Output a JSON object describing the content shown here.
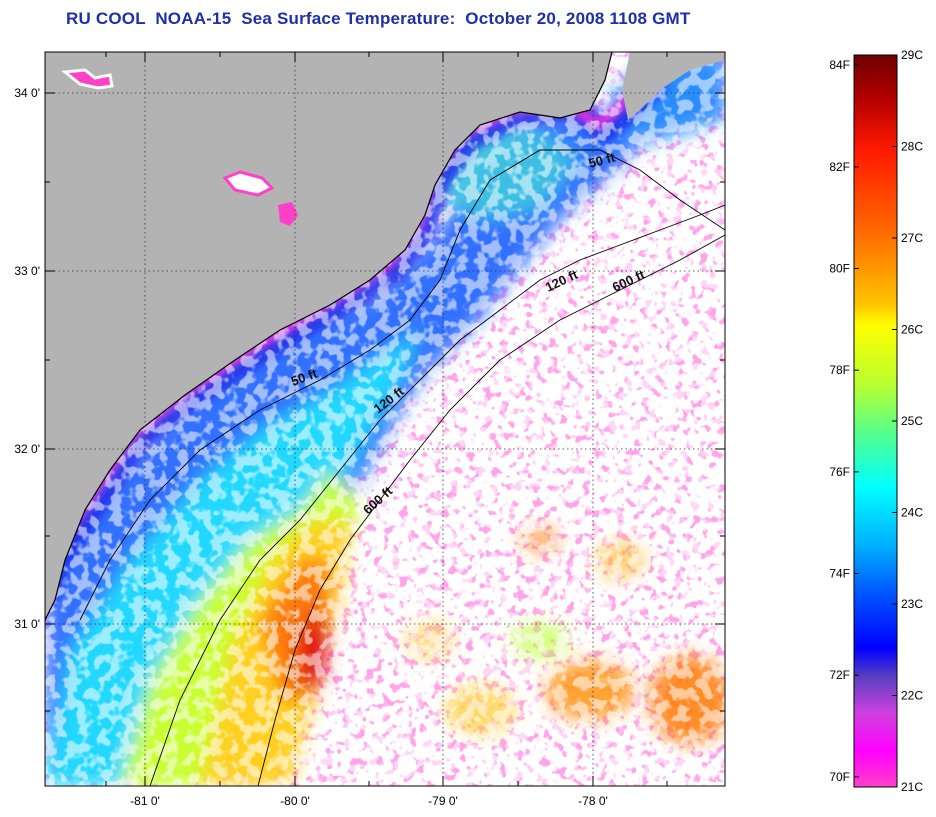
{
  "title": "RU COOL  NOAA-15  Sea Surface Temperature:  October 20, 2008 1108 GMT",
  "map": {
    "lat_labels": [
      {
        "lat": 34,
        "text": "34 0'"
      },
      {
        "lat": 33,
        "text": "33 0'"
      },
      {
        "lat": 32,
        "text": "32 0'"
      },
      {
        "lat": 31,
        "text": "31 0'"
      }
    ],
    "lon_labels": [
      {
        "lon": -81,
        "text": "-81 0'"
      },
      {
        "lon": -80,
        "text": "-80 0'"
      },
      {
        "lon": -79,
        "text": "-79 0'"
      },
      {
        "lon": -78,
        "text": "-78 0'"
      }
    ],
    "contour_labels": [
      "50 ft",
      "120 ft",
      "600 ft",
      "50 ft",
      "120 ft",
      "600 ft"
    ],
    "colors": {
      "land": "#b3b3b3",
      "cloud": "#ffffff",
      "coast": "#000000",
      "grid": "#000000"
    }
  },
  "colorbar": {
    "celsius": [
      "29C",
      "28C",
      "27C",
      "26C",
      "25C",
      "24C",
      "23C",
      "22C",
      "21C"
    ],
    "fahrenheit": [
      "84F",
      "82F",
      "80F",
      "78F",
      "76F",
      "74F",
      "72F",
      "70F"
    ],
    "stops": [
      "#6e0000",
      "#c80000",
      "#ff2a00",
      "#ff7a00",
      "#ffc800",
      "#ffff00",
      "#9cff40",
      "#30ffb0",
      "#00ffff",
      "#0090ff",
      "#0028ff",
      "#0000c0",
      "#8a4ad8",
      "#ff00ff",
      "#ff45c8"
    ]
  }
}
